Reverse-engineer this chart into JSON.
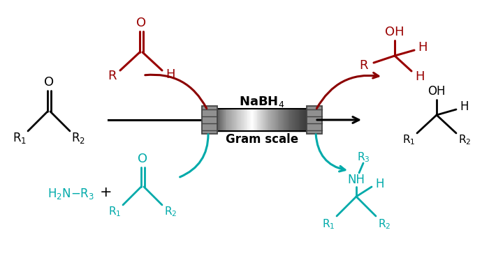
{
  "bg_color": "#ffffff",
  "dark_red": "#8B0000",
  "red": "#990000",
  "teal": "#00AAAA",
  "black": "#000000",
  "reactor_label": "NaBH$_4$",
  "scale_label": "Gram scale",
  "figsize": [
    7.0,
    3.73
  ],
  "dpi": 100,
  "xlim": [
    0,
    700
  ],
  "ylim": [
    0,
    373
  ]
}
